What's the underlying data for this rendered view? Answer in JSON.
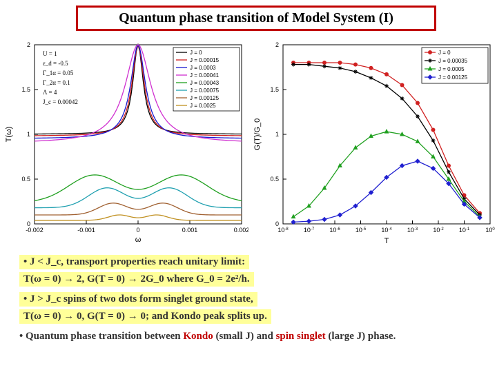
{
  "title": "Quantum phase transition of Model System (I)",
  "left_chart": {
    "type": "line",
    "xlabel": "ω",
    "ylabel": "T(ω)",
    "xlim": [
      -0.002,
      0.002
    ],
    "ylim": [
      0,
      2
    ],
    "xticks": [
      -0.002,
      -0.001,
      0,
      0.001,
      0.002
    ],
    "yticks": [
      0,
      0.5,
      1,
      1.5,
      2
    ],
    "background_color": "#ffffff",
    "params": [
      "U = 1",
      "ε_d = -0.5",
      "Γ_1α = 0.05",
      "Γ_2α = 0.1",
      "Λ = 4",
      "J_c = 0.00042"
    ],
    "legend_items": [
      {
        "label": "J = 0",
        "color": "#000000"
      },
      {
        "label": "J = 0.00015",
        "color": "#d02020"
      },
      {
        "label": "J = 0.0003",
        "color": "#1818d0"
      },
      {
        "label": "J = 0.00041",
        "color": "#d030d0"
      },
      {
        "label": "J = 0.00043",
        "color": "#20a020"
      },
      {
        "label": "J = 0.00075",
        "color": "#20a0b0"
      },
      {
        "label": "J = 0.00125",
        "color": "#a06030"
      },
      {
        "label": "J = 0.0025",
        "color": "#c09020"
      }
    ],
    "curves": [
      {
        "color": "#000000",
        "peak": 2.0,
        "baseline": 1.0,
        "width": 0.00012,
        "offset": 0
      },
      {
        "color": "#d02020",
        "peak": 2.0,
        "baseline": 0.98,
        "width": 0.00014,
        "offset": 0
      },
      {
        "color": "#1818d0",
        "peak": 2.0,
        "baseline": 0.95,
        "width": 0.00017,
        "offset": 0
      },
      {
        "color": "#d030d0",
        "peak": 2.0,
        "baseline": 0.9,
        "width": 0.0003,
        "offset": 0
      },
      {
        "color": "#20a020",
        "peak": 0.75,
        "baseline": 0.6,
        "width": 0.0007,
        "offset": 0,
        "dip": true
      },
      {
        "color": "#20a0b0",
        "peak": 0.55,
        "baseline": 0.45,
        "width": 0.0005,
        "offset": 0,
        "dip": true
      },
      {
        "color": "#a06030",
        "peak": 0.32,
        "baseline": 0.25,
        "width": 0.0004,
        "offset": 0,
        "dip": true
      },
      {
        "color": "#c09020",
        "peak": 0.14,
        "baseline": 0.1,
        "width": 0.0003,
        "offset": 0,
        "dip": true
      }
    ]
  },
  "right_chart": {
    "type": "line-log",
    "xlabel": "T",
    "ylabel": "G(T)/G_0",
    "xscale": "log",
    "xlim_exp": [
      -8,
      0
    ],
    "ylim": [
      0,
      2
    ],
    "xticks_exp": [
      -8,
      -7,
      -6,
      -5,
      -4,
      -3,
      -2,
      -1,
      0
    ],
    "yticks": [
      0,
      0.5,
      1,
      1.5,
      2
    ],
    "background_color": "#ffffff",
    "legend_items": [
      {
        "label": "J = 0",
        "color": "#d02020",
        "marker": "circle"
      },
      {
        "label": "J = 0.00035",
        "color": "#000000",
        "marker": "star"
      },
      {
        "label": "J = 0.0005",
        "color": "#20a020",
        "marker": "triangle"
      },
      {
        "label": "J = 0.00125",
        "color": "#2020d0",
        "marker": "diamond"
      }
    ],
    "series": [
      {
        "color": "#d02020",
        "marker": "circle",
        "x_exp": [
          -7.6,
          -7.0,
          -6.4,
          -5.8,
          -5.2,
          -4.6,
          -4.0,
          -3.4,
          -2.8,
          -2.2,
          -1.6,
          -1.0,
          -0.4
        ],
        "y": [
          1.8,
          1.8,
          1.8,
          1.8,
          1.78,
          1.74,
          1.67,
          1.55,
          1.35,
          1.05,
          0.65,
          0.32,
          0.12
        ]
      },
      {
        "color": "#000000",
        "marker": "star",
        "x_exp": [
          -7.6,
          -7.0,
          -6.4,
          -5.8,
          -5.2,
          -4.6,
          -4.0,
          -3.4,
          -2.8,
          -2.2,
          -1.6,
          -1.0,
          -0.4
        ],
        "y": [
          1.78,
          1.78,
          1.76,
          1.74,
          1.7,
          1.63,
          1.54,
          1.4,
          1.2,
          0.93,
          0.58,
          0.28,
          0.1
        ]
      },
      {
        "color": "#20a020",
        "marker": "triangle",
        "x_exp": [
          -7.6,
          -7.0,
          -6.4,
          -5.8,
          -5.2,
          -4.6,
          -4.0,
          -3.4,
          -2.8,
          -2.2,
          -1.6,
          -1.0,
          -0.4
        ],
        "y": [
          0.08,
          0.2,
          0.4,
          0.65,
          0.85,
          0.98,
          1.03,
          1.0,
          0.92,
          0.75,
          0.5,
          0.25,
          0.08
        ]
      },
      {
        "color": "#2020d0",
        "marker": "diamond",
        "x_exp": [
          -7.6,
          -7.0,
          -6.4,
          -5.8,
          -5.2,
          -4.6,
          -4.0,
          -3.4,
          -2.8,
          -2.2,
          -1.6,
          -1.0,
          -0.4
        ],
        "y": [
          0.02,
          0.03,
          0.05,
          0.1,
          0.2,
          0.35,
          0.52,
          0.65,
          0.7,
          0.62,
          0.45,
          0.22,
          0.07
        ]
      }
    ]
  },
  "bullets": {
    "line1": "• J < J_c, transport properties reach unitary limit:",
    "line2": "  T(ω = 0) → 2, G(T = 0) → 2G_0 where G_0 = 2e²/h.",
    "line3": "• J > J_c spins of two dots form singlet ground state,",
    "line4": "  T(ω = 0) → 0, G(T = 0) → 0; and Kondo peak splits up.",
    "line5_pre": "• Quantum phase transition between ",
    "kondo": "Kondo",
    "mid1": " (small J) and ",
    "spin": "spin singlet",
    "line5_post": " (large J) phase."
  }
}
